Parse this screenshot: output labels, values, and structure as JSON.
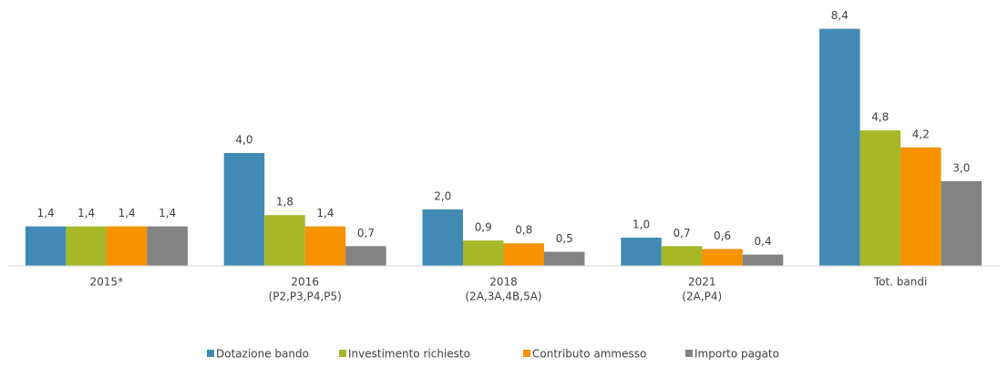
{
  "chart_data": {
    "type": "bar",
    "categories": [
      [
        "2015*"
      ],
      [
        "2016",
        "(P2,P3,P4,P5)"
      ],
      [
        "2018",
        "(2A,3A,4B,5A)"
      ],
      [
        "2021",
        "(2A,P4)"
      ],
      [
        "Tot. bandi"
      ]
    ],
    "series": [
      {
        "name": "Dotazione bando",
        "color": "#418ab3",
        "values": [
          1.4,
          4.0,
          2.0,
          1.0,
          8.4
        ],
        "value_labels": [
          "1,4",
          "4,0",
          "2,0",
          "1,0",
          "8,4"
        ]
      },
      {
        "name": "Investimento richiesto",
        "color": "#a6b727",
        "values": [
          1.4,
          1.8,
          0.9,
          0.7,
          4.8
        ],
        "value_labels": [
          "1,4",
          "1,8",
          "0,9",
          "0,7",
          "4,8"
        ]
      },
      {
        "name": "Contributo ammesso",
        "color": "#f69200",
        "values": [
          1.4,
          1.4,
          0.8,
          0.6,
          4.2
        ],
        "value_labels": [
          "1,4",
          "1,4",
          "0,8",
          "0,6",
          "4,2"
        ]
      },
      {
        "name": "Importo pagato",
        "color": "#838383",
        "values": [
          1.4,
          0.7,
          0.5,
          0.4,
          3.0
        ],
        "value_labels": [
          "1,4",
          "0,7",
          "0,5",
          "0,4",
          "3,0"
        ]
      }
    ],
    "ylim": [
      0,
      9
    ],
    "legend": "bottom"
  }
}
